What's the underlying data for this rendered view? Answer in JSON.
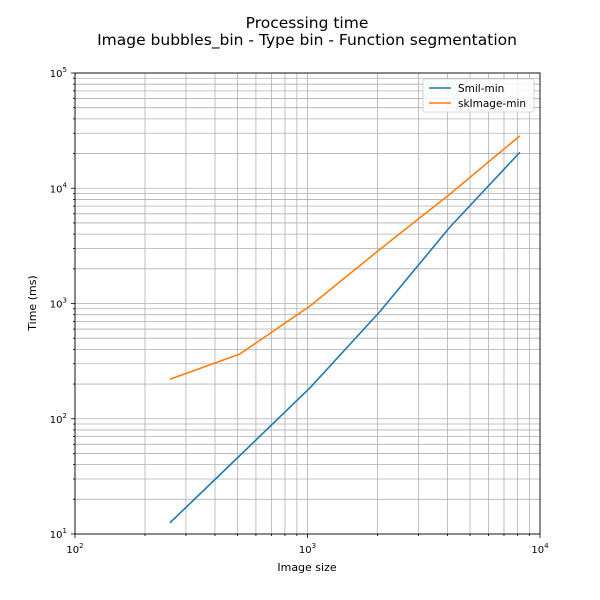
{
  "chart_data": {
    "type": "line",
    "title": "Processing time",
    "subtitle": "Image bubbles_bin - Type bin - Function segmentation",
    "xlabel": "Image size",
    "ylabel": "Time (ms)",
    "xscale": "log",
    "yscale": "log",
    "xlim": [
      100,
      10000
    ],
    "ylim": [
      10,
      100000
    ],
    "grid": true,
    "legend_position": "top-right",
    "x_ticks": [
      {
        "value": 100,
        "base": "10",
        "exp": "2"
      },
      {
        "value": 1000,
        "base": "10",
        "exp": "3"
      },
      {
        "value": 10000,
        "base": "10",
        "exp": "4"
      }
    ],
    "y_ticks": [
      {
        "value": 10,
        "base": "10",
        "exp": "1"
      },
      {
        "value": 100,
        "base": "10",
        "exp": "2"
      },
      {
        "value": 1000,
        "base": "10",
        "exp": "3"
      },
      {
        "value": 10000,
        "base": "10",
        "exp": "4"
      },
      {
        "value": 100000,
        "base": "10",
        "exp": "5"
      }
    ],
    "series": [
      {
        "name": "Smil-min",
        "color": "#1f77b4",
        "x": [
          256,
          512,
          1024,
          2048,
          4096,
          8192
        ],
        "y": [
          12.5,
          48,
          185,
          850,
          4600,
          20500
        ]
      },
      {
        "name": "skImage-min",
        "color": "#ff7f0e",
        "x": [
          256,
          512,
          1024,
          2048,
          4096,
          8192
        ],
        "y": [
          220,
          365,
          950,
          2950,
          8900,
          28500
        ]
      }
    ]
  }
}
